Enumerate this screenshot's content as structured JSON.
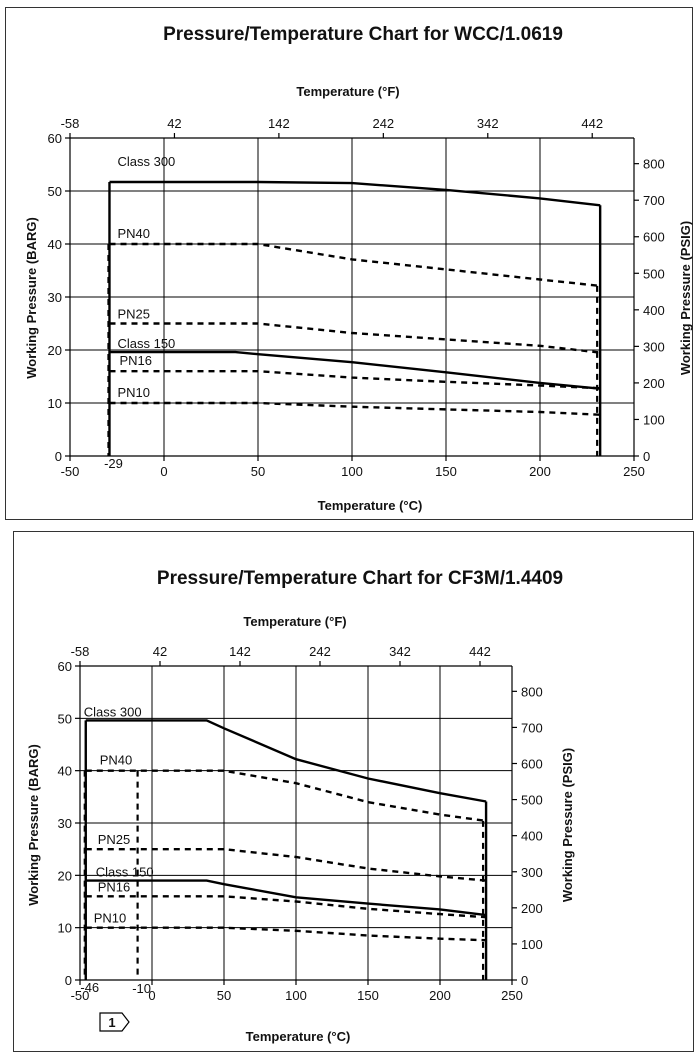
{
  "chart_data": [
    {
      "type": "line",
      "title": "Pressure/Temperature Chart for WCC/1.0619",
      "xlabel": "Temperature (°C)",
      "x2label": "Temperature (°F)",
      "ylabel": "Working Pressure (BARG)",
      "y2label": "Working Pressure (PSIG)",
      "xlim": [
        -50,
        250
      ],
      "ylim": [
        0,
        60
      ],
      "xticks": [
        -50,
        0,
        50,
        100,
        150,
        200,
        250
      ],
      "yticks": [
        0,
        10,
        20,
        30,
        40,
        50,
        60
      ],
      "x2ticks": [
        -58,
        42,
        142,
        242,
        342,
        442
      ],
      "y2ticks": [
        0,
        100,
        200,
        300,
        400,
        500,
        600,
        700,
        800
      ],
      "grid": true,
      "min_temp_label": "-29",
      "series": [
        {
          "name": "Class 300",
          "style": "solid",
          "x": [
            -29,
            50,
            100,
            150,
            200,
            232
          ],
          "y": [
            51.7,
            51.7,
            51.5,
            50.2,
            48.6,
            47.3
          ]
        },
        {
          "name": "PN40",
          "style": "dashed",
          "x": [
            -29,
            50,
            100,
            150,
            200,
            232
          ],
          "y": [
            40,
            40,
            37.1,
            35.2,
            33.3,
            32.1
          ]
        },
        {
          "name": "PN25",
          "style": "dashed",
          "x": [
            -29,
            50,
            100,
            150,
            200,
            232
          ],
          "y": [
            25,
            25,
            23.2,
            22,
            20.8,
            19.5
          ]
        },
        {
          "name": "Class 150",
          "style": "solid",
          "x": [
            -29,
            38,
            50,
            100,
            150,
            200,
            232
          ],
          "y": [
            19.6,
            19.6,
            19.2,
            17.7,
            15.8,
            13.8,
            12.7
          ]
        },
        {
          "name": "PN16",
          "style": "dashed",
          "x": [
            -29,
            50,
            100,
            150,
            200,
            232
          ],
          "y": [
            16,
            16,
            14.8,
            14,
            13.3,
            12.8
          ]
        },
        {
          "name": "PN10",
          "style": "dashed",
          "x": [
            -29,
            50,
            100,
            150,
            200,
            232
          ],
          "y": [
            10,
            10,
            9.3,
            8.8,
            8.3,
            7.8
          ]
        }
      ]
    },
    {
      "type": "line",
      "title": "Pressure/Temperature Chart for CF3M/1.4409",
      "xlabel": "Temperature (°C)",
      "x2label": "Temperature (°F)",
      "ylabel": "Working Pressure (BARG)",
      "y2label": "Working Pressure (PSIG)",
      "xlim": [
        -50,
        250
      ],
      "ylim": [
        0,
        60
      ],
      "xticks": [
        -50,
        0,
        50,
        100,
        150,
        200,
        250
      ],
      "yticks": [
        0,
        10,
        20,
        30,
        40,
        50,
        60
      ],
      "x2ticks": [
        -58,
        42,
        142,
        242,
        342,
        442
      ],
      "y2ticks": [
        0,
        100,
        200,
        300,
        400,
        500,
        600,
        700,
        800
      ],
      "grid": true,
      "min_temp_label": "-46",
      "secondary_temp_label": "-10",
      "note_marker": "1",
      "series": [
        {
          "name": "Class 300",
          "style": "solid",
          "x": [
            -46,
            38,
            50,
            100,
            150,
            200,
            232
          ],
          "y": [
            49.6,
            49.6,
            48.1,
            42.2,
            38.5,
            35.7,
            34.1
          ]
        },
        {
          "name": "PN40",
          "style": "dashed",
          "x": [
            -46,
            50,
            100,
            150,
            200,
            232
          ],
          "y": [
            40,
            40,
            37.6,
            34,
            31.6,
            30.4
          ]
        },
        {
          "name": "PN25",
          "style": "dashed",
          "x": [
            -46,
            50,
            100,
            150,
            200,
            232
          ],
          "y": [
            25,
            25,
            23.5,
            21.3,
            19.8,
            19
          ]
        },
        {
          "name": "Class 150",
          "style": "solid",
          "x": [
            -46,
            38,
            50,
            100,
            150,
            200,
            232
          ],
          "y": [
            19,
            19,
            18.3,
            15.8,
            14.6,
            13.5,
            12.4
          ]
        },
        {
          "name": "PN16",
          "style": "dashed",
          "x": [
            -46,
            50,
            100,
            150,
            200,
            232
          ],
          "y": [
            16,
            16,
            15,
            13.6,
            12.6,
            12
          ]
        },
        {
          "name": "PN10",
          "style": "dashed",
          "x": [
            -46,
            50,
            100,
            150,
            200,
            232
          ],
          "y": [
            10,
            10,
            9.4,
            8.5,
            7.9,
            7.6
          ]
        }
      ]
    }
  ]
}
